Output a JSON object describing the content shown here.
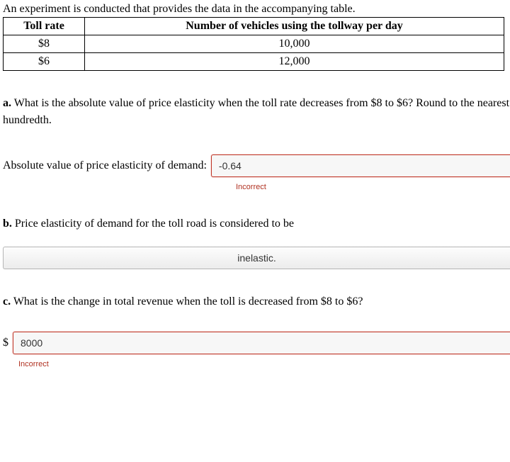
{
  "intro": "An experiment is conducted that provides the data in the accompanying table.",
  "table": {
    "columns": [
      "Toll rate",
      "Number of vehicles using the tollway per day"
    ],
    "rows": [
      [
        "$8",
        "10,000"
      ],
      [
        "$6",
        "12,000"
      ]
    ],
    "border_color": "#000000",
    "header_fontweight": "bold"
  },
  "partA": {
    "label": "a.",
    "question": " What is the absolute value of price elasticity when the toll rate decreases from $8 to $6? Round to the nearest hundredth.",
    "answer_label": "Absolute value of price elasticity of demand:",
    "value": "-0.64",
    "feedback": "Incorrect",
    "state": "incorrect"
  },
  "partB": {
    "label": "b.",
    "question": " Price elasticity of demand for the toll road is considered to be",
    "selected": "inelastic."
  },
  "partC": {
    "label": "c.",
    "question": " What is the change in total revenue when the toll is decreased from $8 to $6?",
    "prefix": "$",
    "value": "8000",
    "feedback": "Incorrect",
    "state": "incorrect"
  },
  "colors": {
    "error": "#b03020",
    "input_border": "#b5b5b5",
    "input_bg": "#f7f7f7"
  }
}
